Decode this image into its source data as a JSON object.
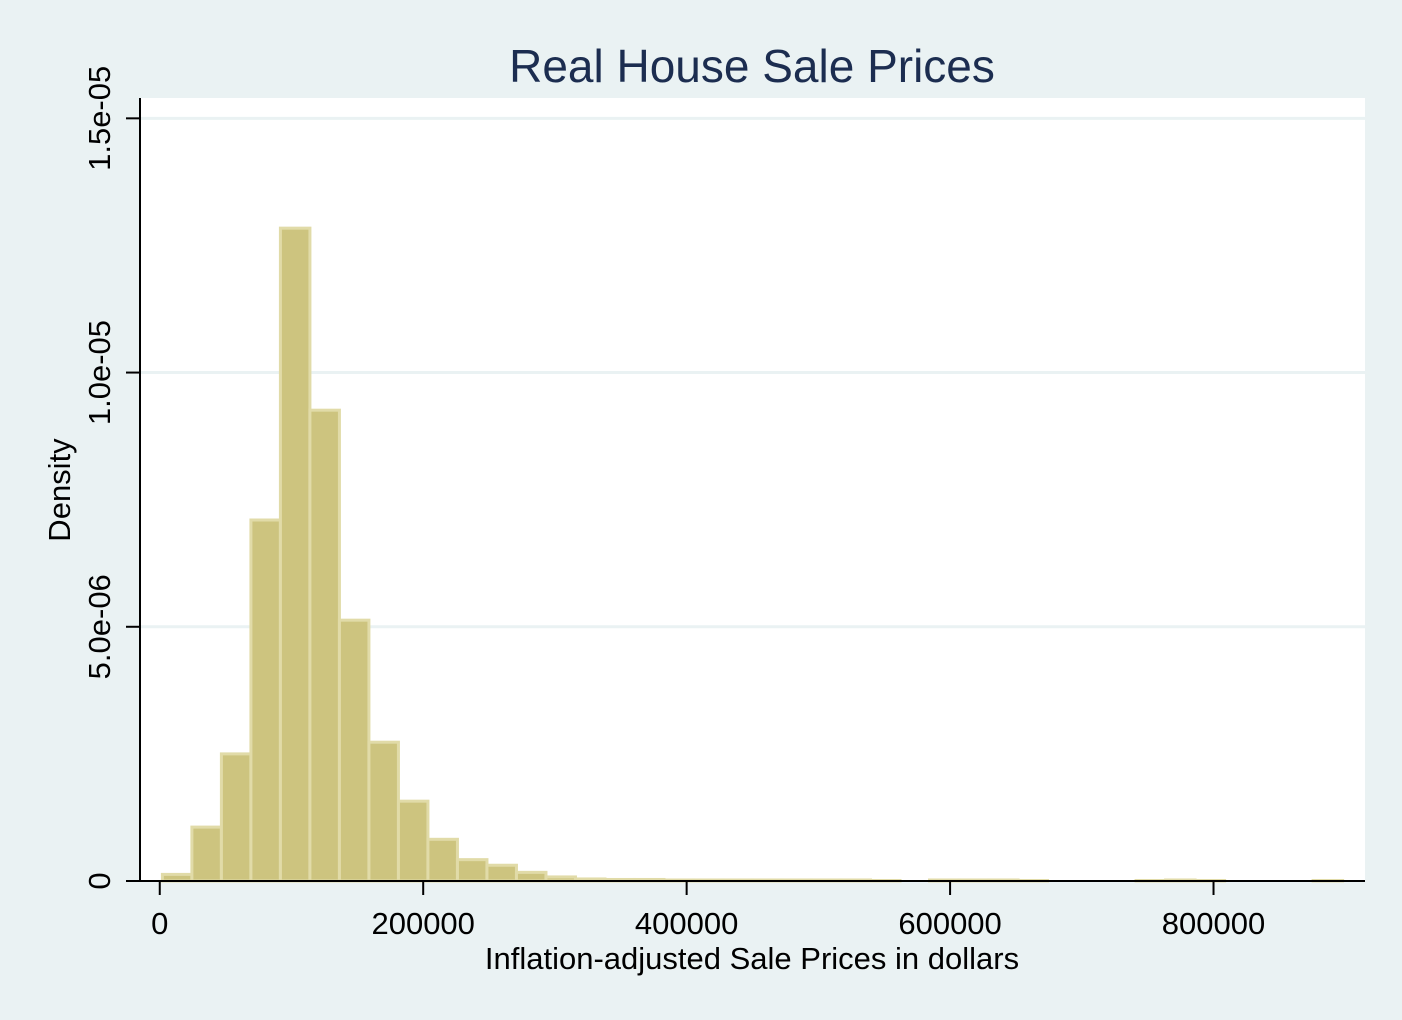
{
  "chart_data": {
    "type": "bar",
    "title": "Real House Sale Prices",
    "xlabel": "Inflation-adjusted Sale Prices in dollars",
    "ylabel": "Density",
    "xlim": [
      -15000,
      915000
    ],
    "ylim": [
      0,
      1.54e-05
    ],
    "xticks": [
      {
        "value": 0,
        "label": "0"
      },
      {
        "value": 200000,
        "label": "200000"
      },
      {
        "value": 400000,
        "label": "400000"
      },
      {
        "value": 600000,
        "label": "600000"
      },
      {
        "value": 800000,
        "label": "800000"
      }
    ],
    "yticks": [
      {
        "value": 0,
        "label": "0"
      },
      {
        "value": 5e-06,
        "label": "5.0e-06"
      },
      {
        "value": 1e-05,
        "label": "1.0e-05"
      },
      {
        "value": 1.5e-05,
        "label": "1.5e-05"
      }
    ],
    "grid": true,
    "bin_width": 22400,
    "bins": [
      {
        "x0": 2000,
        "value": 1.3e-07
      },
      {
        "x0": 24400,
        "value": 1.06e-06
      },
      {
        "x0": 46800,
        "value": 2.5e-06
      },
      {
        "x0": 69200,
        "value": 7.1e-06
      },
      {
        "x0": 91600,
        "value": 1.284e-05
      },
      {
        "x0": 114000,
        "value": 9.26e-06
      },
      {
        "x0": 136400,
        "value": 5.13e-06
      },
      {
        "x0": 158800,
        "value": 2.73e-06
      },
      {
        "x0": 181200,
        "value": 1.57e-06
      },
      {
        "x0": 203600,
        "value": 8.2e-07
      },
      {
        "x0": 226000,
        "value": 4.2e-07
      },
      {
        "x0": 248400,
        "value": 3.1e-07
      },
      {
        "x0": 270800,
        "value": 1.7e-07
      },
      {
        "x0": 293200,
        "value": 8e-08
      },
      {
        "x0": 315600,
        "value": 4e-08
      },
      {
        "x0": 338000,
        "value": 3e-08
      },
      {
        "x0": 360400,
        "value": 3e-08
      },
      {
        "x0": 382800,
        "value": 2e-08
      },
      {
        "x0": 405200,
        "value": 2e-08
      },
      {
        "x0": 427600,
        "value": 2e-08
      },
      {
        "x0": 450000,
        "value": 2e-08
      },
      {
        "x0": 472400,
        "value": 2e-08
      },
      {
        "x0": 494800,
        "value": 2e-08
      },
      {
        "x0": 517200,
        "value": 2e-08
      },
      {
        "x0": 539600,
        "value": 1e-08
      },
      {
        "x0": 584400,
        "value": 2e-08
      },
      {
        "x0": 606800,
        "value": 2e-08
      },
      {
        "x0": 629200,
        "value": 2e-08
      },
      {
        "x0": 651600,
        "value": 1e-08
      },
      {
        "x0": 741200,
        "value": 1e-08
      },
      {
        "x0": 763600,
        "value": 2e-08
      },
      {
        "x0": 786000,
        "value": 1e-08
      },
      {
        "x0": 875600,
        "value": 1e-08
      }
    ],
    "colors": {
      "bar_fill": "#cdc47f",
      "bar_outline": "#e1dba8",
      "plot_background": "#ffffff",
      "outer_background": "#eaf2f3",
      "title_color": "#1c2d50"
    }
  }
}
